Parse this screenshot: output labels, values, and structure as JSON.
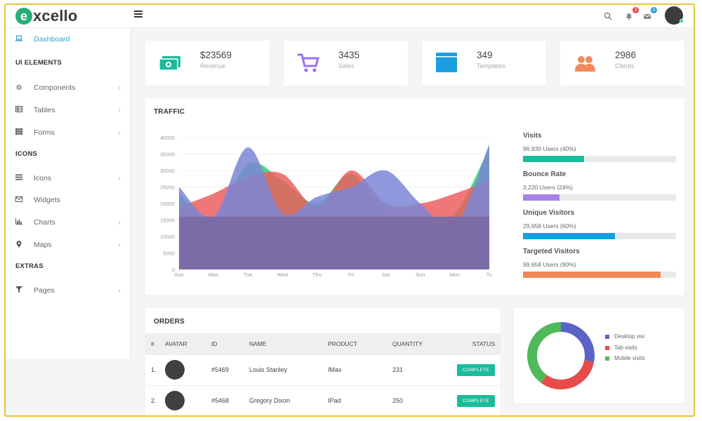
{
  "brand": {
    "logo_letter": "e",
    "logo_rest": "xcello"
  },
  "topbar": {
    "notif_count": "3",
    "mail_count": "4",
    "icons": [
      "search-icon",
      "bell-icon",
      "mail-icon"
    ]
  },
  "sidebar": {
    "dashboard": "Dashboard",
    "sec_ui": "UI ELEMENTS",
    "components": "Components",
    "tables": "Tables",
    "forms": "Forms",
    "sec_icons": "ICONS",
    "icons": "Icons",
    "widgets": "Widgets",
    "charts": "Charts",
    "maps": "Maps",
    "sec_extras": "EXTRAS",
    "pages": "Pages"
  },
  "stats": [
    {
      "value": "$23569",
      "label": "Revenue",
      "color": "#1abc9c",
      "icon": "money-icon"
    },
    {
      "value": "3435",
      "label": "Sales",
      "color": "#9b6ff5",
      "icon": "cart-icon"
    },
    {
      "value": "349",
      "label": "Templates",
      "color": "#1a9ee0",
      "icon": "window-icon"
    },
    {
      "value": "2986",
      "label": "Clients",
      "color": "#f08a5d",
      "icon": "users-icon"
    }
  ],
  "traffic": {
    "title": "TRAFFIC",
    "metrics": [
      {
        "name": "Visits",
        "sub": "96,930 Users (40%)",
        "percent": 40,
        "color": "#1abc9c"
      },
      {
        "name": "Bounce Rate",
        "sub": "3,220 Users (24%)",
        "percent": 24,
        "color": "#a882e6"
      },
      {
        "name": "Unique Visitors",
        "sub": "29,658 Users (60%)",
        "percent": 60,
        "color": "#12a0e3"
      },
      {
        "name": "Targeted Visitors",
        "sub": "99,658 Users (90%)",
        "percent": 90,
        "color": "#f0885a"
      }
    ]
  },
  "chart_data": [
    {
      "type": "area",
      "categories": [
        "Sun",
        "Mon",
        "Tue",
        "Wed",
        "Thu",
        "Fri",
        "Sat",
        "Sun",
        "Mon",
        "Tu"
      ],
      "ylim": [
        0,
        40000
      ],
      "yticks": [
        "0",
        "5000",
        "10000",
        "15000",
        "20000",
        "25000",
        "30000",
        "35000",
        "40000"
      ],
      "series": [
        {
          "values": [
            23000,
            15000,
            32000,
            27000,
            20000,
            29000,
            16000,
            15000,
            17000,
            37000
          ],
          "color": "#2ecc71"
        },
        {
          "values": [
            19000,
            23000,
            28000,
            29000,
            19000,
            30000,
            20000,
            20000,
            23000,
            27000
          ],
          "color": "#ec5f5f"
        },
        {
          "values": [
            25000,
            16000,
            37000,
            17000,
            22000,
            25000,
            30000,
            20000,
            13000,
            38000
          ],
          "color": "#7b86d6"
        },
        {
          "values": [
            16000,
            16000,
            16000,
            16000,
            16000,
            16000,
            16000,
            16000,
            16000,
            16000
          ],
          "color": "#7a6aa6"
        }
      ]
    },
    {
      "type": "pie",
      "categories": [
        "Desktop visi",
        "Tab visits",
        "Mobile visits"
      ],
      "values": [
        28,
        32,
        40
      ],
      "colors": [
        "#5b63c9",
        "#e84b4b",
        "#4fba5a"
      ]
    }
  ],
  "orders": {
    "title": "ORDERS",
    "columns": [
      "#",
      "AVATAR",
      "ID",
      "NAME",
      "PRODUCT",
      "QUANTITY",
      "STATUS"
    ],
    "rows": [
      {
        "num": "1.",
        "id": "#5469",
        "name": "Louis Stanley",
        "product": "IMax",
        "qty": "231",
        "status": "COMPLETE"
      },
      {
        "num": "2.",
        "id": "#5468",
        "name": "Gregory Dixon",
        "product": "IPad",
        "qty": "250",
        "status": "COMPLETE"
      }
    ]
  }
}
